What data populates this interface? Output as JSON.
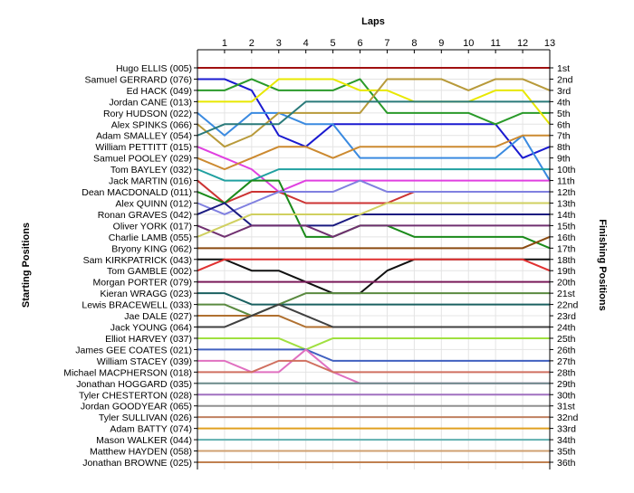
{
  "chart_data": {
    "type": "line",
    "title": "",
    "top_axis_label": "Laps",
    "ylabel_left": "Starting Positions",
    "ylabel_right": "Finishing Positions",
    "x": [
      0,
      1,
      2,
      3,
      4,
      5,
      6,
      7,
      8,
      9,
      10,
      11,
      12,
      13
    ],
    "x_tick_labels": [
      "1",
      "2",
      "3",
      "4",
      "5",
      "6",
      "7",
      "8",
      "9",
      "10",
      "11",
      "12",
      "13"
    ],
    "xlim": [
      0,
      13
    ],
    "ylim": [
      1,
      36
    ],
    "y_inverted": true,
    "grid": true,
    "starting_order": [
      "Hugo ELLIS (005)",
      "Samuel GERRARD (076)",
      "Ed HACK (049)",
      "Jordan CANE (013)",
      "Rory HUDSON (022)",
      "Alex SPINKS (066)",
      "Adam SMALLEY (054)",
      "William PETTITT (015)",
      "Samuel POOLEY (029)",
      "Tom BAYLEY (032)",
      "Jack MARTIN (016)",
      "Dean MACDONALD (011)",
      "Alex QUINN (012)",
      "Ronan GRAVES (042)",
      "Oliver YORK (017)",
      "Charlie LAMB (055)",
      "Bryony KING (062)",
      "Sam KIRKPATRICK (043)",
      "Tom GAMBLE (002)",
      "Morgan PORTER (079)",
      "Kieran WRAGG (023)",
      "Lewis BRACEWELL (033)",
      "Jae DALE (027)",
      "Jack YOUNG (064)",
      "Elliot HARVEY (037)",
      "James GEE COATES (021)",
      "William STACEY (039)",
      "Michael MACPHERSON (018)",
      "Jonathan HOGGARD (035)",
      "Tyler CHESTERTON (028)",
      "Jordan GOODYEAR (065)",
      "Tyler SULLIVAN (026)",
      "Adam BATTY (074)",
      "Mason WALKER (044)",
      "Matthew HAYDEN (058)",
      "Jonathan BROWNE (025)"
    ],
    "finishing_labels": [
      "1st",
      "2nd",
      "3rd",
      "4th",
      "5th",
      "6th",
      "7th",
      "8th",
      "9th",
      "10th",
      "11th",
      "12th",
      "13th",
      "14th",
      "15th",
      "16th",
      "17th",
      "18th",
      "19th",
      "20th",
      "21st",
      "22nd",
      "23rd",
      "24th",
      "25th",
      "26th",
      "27th",
      "28th",
      "29th",
      "30th",
      "31st",
      "32nd",
      "33rd",
      "34th",
      "35th",
      "36th"
    ],
    "series": [
      {
        "color": "#a01010",
        "values": [
          1,
          1,
          1,
          1,
          1,
          1,
          1,
          1,
          1,
          1,
          1,
          1,
          1,
          1
        ]
      },
      {
        "color": "#1a1ad0",
        "values": [
          2,
          2,
          3,
          7,
          8,
          6,
          6,
          6,
          6,
          6,
          6,
          6,
          9,
          8
        ]
      },
      {
        "color": "#2a9a2a",
        "values": [
          3,
          3,
          2,
          3,
          3,
          3,
          2,
          5,
          5,
          5,
          5,
          6,
          5,
          5
        ]
      },
      {
        "color": "#e8e800",
        "values": [
          4,
          4,
          4,
          2,
          2,
          2,
          3,
          3,
          4,
          4,
          4,
          3,
          3,
          6
        ]
      },
      {
        "color": "#3a8ae0",
        "values": [
          5,
          7,
          5,
          5,
          6,
          6,
          9,
          9,
          9,
          9,
          9,
          9,
          7,
          11
        ]
      },
      {
        "color": "#b89a3a",
        "values": [
          6,
          8,
          7,
          5,
          5,
          5,
          5,
          2,
          2,
          2,
          3,
          2,
          2,
          3
        ]
      },
      {
        "color": "#2a7a7a",
        "values": [
          7,
          6,
          6,
          6,
          4,
          4,
          4,
          4,
          4,
          4,
          4,
          4,
          4,
          4
        ]
      },
      {
        "color": "#e040e0",
        "values": [
          8,
          9,
          10,
          12,
          11,
          11,
          11,
          11,
          11,
          11,
          11,
          11,
          11,
          11
        ]
      },
      {
        "color": "#cc8a30",
        "values": [
          9,
          10,
          9,
          8,
          8,
          9,
          8,
          8,
          8,
          8,
          8,
          8,
          7,
          7
        ]
      },
      {
        "color": "#20a0a0",
        "values": [
          10,
          11,
          11,
          10,
          10,
          10,
          10,
          10,
          10,
          10,
          10,
          10,
          10,
          10
        ]
      },
      {
        "color": "#cc3333",
        "values": [
          11,
          13,
          12,
          12,
          13,
          13,
          13,
          13,
          12,
          12,
          12,
          12,
          12,
          12
        ]
      },
      {
        "color": "#1a8a1a",
        "values": [
          12,
          13,
          11,
          11,
          16,
          16,
          15,
          15,
          16,
          16,
          16,
          16,
          16,
          17
        ]
      },
      {
        "color": "#8080e0",
        "values": [
          13,
          14,
          13,
          12,
          12,
          12,
          11,
          12,
          12,
          12,
          12,
          12,
          12,
          12
        ]
      },
      {
        "color": "#1a1a80",
        "values": [
          14,
          13,
          15,
          15,
          15,
          15,
          14,
          14,
          14,
          14,
          14,
          14,
          14,
          14
        ]
      },
      {
        "color": "#703070",
        "values": [
          15,
          16,
          15,
          15,
          15,
          16,
          15,
          15,
          15,
          15,
          15,
          15,
          15,
          15
        ]
      },
      {
        "color": "#d0d060",
        "values": [
          16,
          15,
          14,
          14,
          14,
          14,
          14,
          13,
          13,
          13,
          13,
          13,
          13,
          13
        ]
      },
      {
        "color": "#8a4a10",
        "values": [
          17,
          17,
          17,
          17,
          17,
          17,
          17,
          17,
          17,
          17,
          17,
          17,
          17,
          16
        ]
      },
      {
        "color": "#101010",
        "values": [
          18,
          18,
          19,
          19,
          20,
          21,
          21,
          19,
          18,
          18,
          18,
          18,
          18,
          18
        ]
      },
      {
        "color": "#e03030",
        "values": [
          19,
          18,
          18,
          18,
          18,
          18,
          18,
          18,
          18,
          18,
          18,
          18,
          18,
          19
        ]
      },
      {
        "color": "#7a1a5a",
        "values": [
          20,
          20,
          20,
          20,
          20,
          20,
          20,
          20,
          20,
          20,
          20,
          20,
          20,
          20
        ]
      },
      {
        "color": "#1a6060",
        "values": [
          21,
          21,
          22,
          22,
          22,
          22,
          22,
          22,
          22,
          22,
          22,
          22,
          22,
          22
        ]
      },
      {
        "color": "#5a8a40",
        "values": [
          22,
          22,
          23,
          22,
          21,
          21,
          21,
          21,
          21,
          21,
          21,
          21,
          21,
          21
        ]
      },
      {
        "color": "#b07030",
        "values": [
          23,
          23,
          23,
          23,
          24,
          24,
          24,
          24,
          24,
          24,
          24,
          24,
          24,
          24
        ]
      },
      {
        "color": "#404040",
        "values": [
          24,
          24,
          23,
          22,
          23,
          24,
          24,
          24,
          24,
          24,
          24,
          24,
          24,
          24
        ]
      },
      {
        "color": "#a0e040",
        "values": [
          25,
          25,
          25,
          25,
          26,
          25,
          25,
          25,
          25,
          25,
          25,
          25,
          25,
          25
        ]
      },
      {
        "color": "#4060c0",
        "values": [
          26,
          26,
          26,
          26,
          26,
          27,
          27,
          27,
          27,
          27,
          27,
          27,
          27,
          27
        ]
      },
      {
        "color": "#e070c0",
        "values": [
          27,
          27,
          28,
          28,
          26,
          28,
          29,
          29,
          29,
          29,
          29,
          29,
          29,
          29
        ]
      },
      {
        "color": "#d07060",
        "values": [
          28,
          28,
          28,
          27,
          27,
          28,
          28,
          28,
          28,
          28,
          28,
          28,
          28,
          28
        ]
      },
      {
        "color": "#6a8a8a",
        "values": [
          29,
          29,
          29,
          29,
          29,
          29,
          29,
          29,
          29,
          29,
          29,
          29,
          29,
          29
        ]
      },
      {
        "color": "#a070c0",
        "values": [
          30,
          30,
          30,
          30,
          30,
          30,
          30,
          30,
          30,
          30,
          30,
          30,
          30,
          30
        ]
      },
      {
        "color": "#909090",
        "values": [
          31,
          31,
          31,
          31,
          31,
          31,
          31,
          31,
          31,
          31,
          31,
          31,
          31,
          31
        ]
      },
      {
        "color": "#c08060",
        "values": [
          32,
          32,
          32,
          32,
          32,
          32,
          32,
          32,
          32,
          32,
          32,
          32,
          32,
          32
        ]
      },
      {
        "color": "#e0a020",
        "values": [
          33,
          33,
          33,
          33,
          33,
          33,
          33,
          33,
          33,
          33,
          33,
          33,
          33,
          33
        ]
      },
      {
        "color": "#60b0b0",
        "values": [
          34,
          34,
          34,
          34,
          34,
          34,
          34,
          34,
          34,
          34,
          34,
          34,
          34,
          34
        ]
      },
      {
        "color": "#d0a070",
        "values": [
          35,
          35,
          35,
          35,
          35,
          35,
          35,
          35,
          35,
          35,
          35,
          35,
          35,
          35
        ]
      },
      {
        "color": "#c08050",
        "values": [
          36,
          36,
          36,
          36,
          36,
          36,
          36,
          36,
          36,
          36,
          36,
          36,
          36,
          36
        ]
      }
    ]
  }
}
